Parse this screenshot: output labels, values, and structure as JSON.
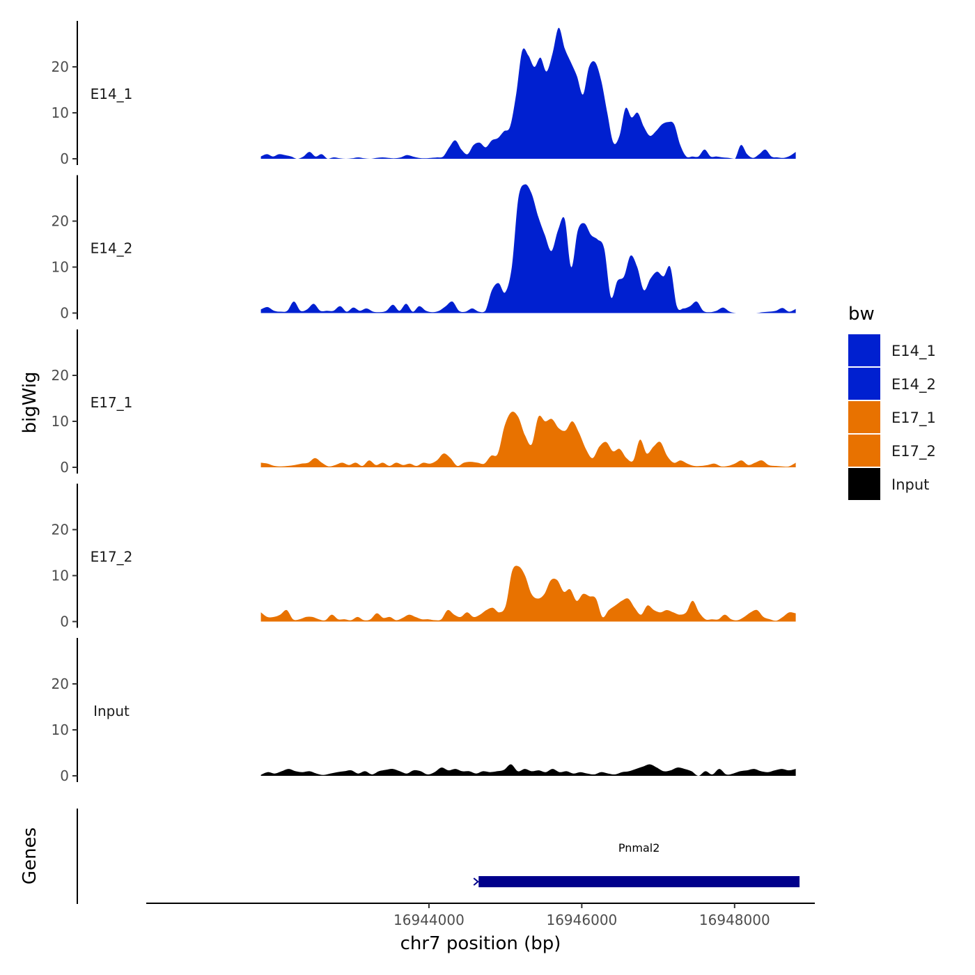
{
  "chart_data": {
    "type": "area",
    "ylabel": "bigWig",
    "xlabel": "chr7 position (bp)",
    "genes_label": "Genes",
    "x_range": [
      16941800,
      16948800
    ],
    "x_domain": [
      16940300,
      16949050
    ],
    "y_range": [
      0,
      30
    ],
    "y_ticks": [
      0,
      10,
      20
    ],
    "x_ticks": [
      16944000,
      16946000,
      16948000
    ],
    "legend_title": "bw",
    "colors": {
      "E14_1": "#0020d0",
      "E14_2": "#0020d0",
      "E17_1": "#e87200",
      "E17_2": "#e87200",
      "Input": "#000000"
    },
    "series": [
      {
        "name": "E14_1",
        "values": [
          0.5,
          1,
          0.5,
          1,
          0.8,
          0.5,
          0,
          0.5,
          1.5,
          0.5,
          1,
          0,
          0.3,
          0.1,
          0,
          0.1,
          0.3,
          0.1,
          0,
          0.2,
          0.3,
          0.2,
          0.1,
          0.3,
          0.8,
          0.5,
          0.2,
          0.1,
          0.2,
          0.3,
          0.5,
          2.5,
          4,
          2,
          1,
          3,
          3.5,
          2.5,
          4,
          4.5,
          6,
          7,
          14,
          23.5,
          22.5,
          20,
          22,
          19,
          23,
          28.5,
          24,
          21,
          18,
          14,
          20,
          21,
          17,
          10,
          3.5,
          5,
          11,
          9,
          10,
          7,
          5,
          6,
          7.5,
          8,
          7.5,
          3,
          0.5,
          0.5,
          0.5,
          2,
          0.5,
          0.5,
          0.3,
          0.2,
          0,
          3,
          1,
          0.2,
          1,
          2,
          0.5,
          0.3,
          0.2,
          0.6,
          1.5
        ]
      },
      {
        "name": "E14_2",
        "values": [
          0.8,
          1.3,
          0.5,
          0.3,
          0.5,
          2.5,
          0.5,
          0.8,
          2,
          0.5,
          0.5,
          0.5,
          1.5,
          0.3,
          1.2,
          0.5,
          1,
          0.3,
          0.2,
          0.5,
          1.8,
          0.5,
          2,
          0.3,
          1.5,
          0.5,
          0.2,
          0.5,
          1.5,
          2.5,
          0.5,
          0.3,
          1,
          0.3,
          0.5,
          5,
          6.5,
          4.5,
          10,
          25,
          28,
          26,
          21,
          17,
          13.5,
          18,
          20.5,
          10,
          18,
          19.5,
          17,
          16,
          14,
          3.5,
          7,
          8,
          12.5,
          10,
          5,
          7.5,
          9,
          8,
          10,
          1.5,
          1,
          1.5,
          2.5,
          0.5,
          0.2,
          0.5,
          1.2,
          0.3,
          0,
          0,
          0,
          0,
          0.2,
          0.3,
          0.5,
          1.1,
          0.3,
          0.9
        ]
      },
      {
        "name": "E17_1",
        "values": [
          1,
          0.8,
          0.3,
          0.2,
          0.3,
          0.5,
          0.8,
          1,
          2,
          1,
          0.2,
          0.5,
          1,
          0.5,
          1,
          0.3,
          1.5,
          0.5,
          1,
          0.3,
          1,
          0.5,
          0.8,
          0.3,
          1,
          0.8,
          1.5,
          3,
          2,
          0.3,
          1,
          1.2,
          1,
          0.8,
          2.5,
          3,
          9,
          12,
          11,
          7,
          5,
          11,
          10,
          10.5,
          8.5,
          8,
          10,
          7.5,
          4,
          2,
          4.5,
          5.5,
          3.5,
          4,
          2,
          1.5,
          6,
          3,
          4.5,
          5.5,
          2.5,
          1,
          1.5,
          0.8,
          0.3,
          0.3,
          0.5,
          0.8,
          0.2,
          0.3,
          0.8,
          1.5,
          0.5,
          1,
          1.5,
          0.5,
          0.3,
          0.2,
          0.2,
          1
        ]
      },
      {
        "name": "E17_2",
        "values": [
          2,
          1,
          1,
          1.5,
          2.5,
          0.5,
          0.5,
          1,
          1,
          0.5,
          0.3,
          1.5,
          0.5,
          0.5,
          0.3,
          1,
          0.3,
          0.5,
          1.8,
          0.8,
          1,
          0.3,
          0.8,
          1.5,
          1,
          0.5,
          0.5,
          0.3,
          0.5,
          2.5,
          1.5,
          1,
          2,
          1,
          1.5,
          2.5,
          3,
          2,
          3.5,
          11,
          12,
          10,
          6,
          5,
          6,
          9,
          9,
          6.5,
          7,
          4.5,
          6,
          5.5,
          5,
          1,
          2.5,
          3.5,
          4.5,
          5,
          3,
          1.5,
          3.5,
          2.5,
          2,
          2.5,
          2,
          1.5,
          2,
          4.5,
          2,
          0.5,
          0.5,
          0.5,
          1.5,
          0.5,
          0.3,
          1,
          2,
          2.5,
          1,
          0.5,
          0.2,
          1,
          2,
          1.8
        ]
      },
      {
        "name": "Input",
        "values": [
          0.2,
          0.8,
          0.5,
          1,
          1.5,
          1,
          0.8,
          1,
          0.5,
          0.2,
          0.5,
          0.8,
          1,
          1.2,
          0.5,
          1,
          0.3,
          1,
          1.3,
          1.5,
          1,
          0.5,
          1.2,
          1,
          0.3,
          0.8,
          1.8,
          1.2,
          1.5,
          1,
          1,
          0.5,
          1,
          0.8,
          1,
          1.3,
          2.5,
          1,
          1.5,
          1,
          1.2,
          0.8,
          1.5,
          0.8,
          1,
          0.5,
          0.8,
          0.5,
          0.3,
          0.8,
          0.5,
          0.3,
          0.8,
          1,
          1.5,
          2,
          2.5,
          1.8,
          1,
          1.2,
          1.8,
          1.5,
          1,
          0,
          1,
          0.3,
          1.5,
          0.3,
          0.5,
          1,
          1.2,
          1.5,
          1,
          0.8,
          1.2,
          1.5,
          1.2,
          1.5
        ]
      }
    ],
    "genes": [
      {
        "name": "Pnmal2",
        "start": 16944650,
        "end": 16948850
      }
    ]
  }
}
